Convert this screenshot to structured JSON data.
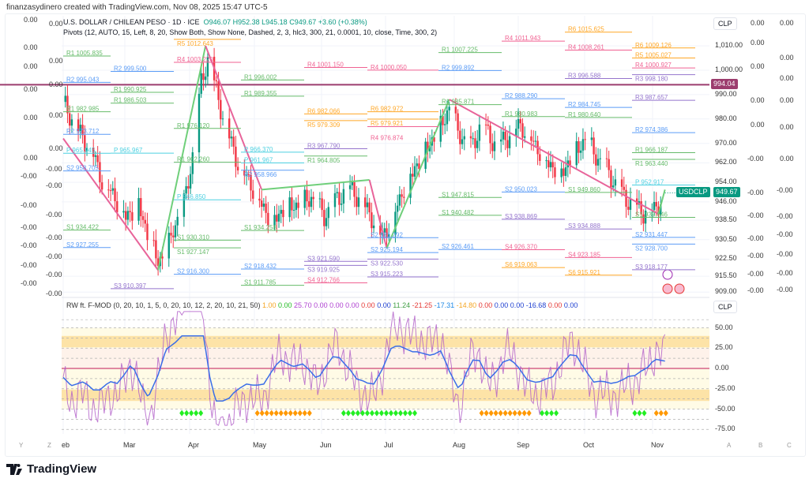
{
  "credit": "finanzasydinero created with TradingView.com, Nov 08, 2025 15:47 UTC-5",
  "symbol": {
    "name": "U.S. DOLLAR / CHILEAN PESO · 1D · ICE",
    "open": "O946.07",
    "high": "H952.38",
    "low": "L945.18",
    "close": "C949.67",
    "change": "+3.60 (+0.38%)",
    "ticker": "USDCLP",
    "last_price": "949.67",
    "ref_line_price": "994.04"
  },
  "pivots_legend": "Pivots (12, AUTO, 15, Left, 8, 20, Show Both, Show None, Dashed, 2, 3, hlc3, 300, 21, 0.0001, 10, close, Time, 300, 2)",
  "indicator": {
    "name": "RW ft. F-MOD (0, 20, 10, 1, 5, 0, 20, 10, 12, 2, 20, 10, 21, 50)",
    "values": [
      {
        "v": "1.00",
        "c": "#f5a623"
      },
      {
        "v": "0.00",
        "c": "#22bb22"
      },
      {
        "v": "25.70",
        "c": "#b043d1"
      },
      {
        "v": "0.00",
        "c": "#b043d1"
      },
      {
        "v": "0.00",
        "c": "#b043d1"
      },
      {
        "v": "0.00",
        "c": "#b043d1"
      },
      {
        "v": "0.00",
        "c": "#e53935"
      },
      {
        "v": "0.00",
        "c": "#1e3fd0"
      },
      {
        "v": "11.24",
        "c": "#43a047"
      },
      {
        "v": "-21.25",
        "c": "#e53935"
      },
      {
        "v": "-17.31",
        "c": "#1e88e5"
      },
      {
        "v": "-14.80",
        "c": "#f5a623"
      },
      {
        "v": "0.00",
        "c": "#e53935"
      },
      {
        "v": "0.00",
        "c": "#1e3fd0"
      },
      {
        "v": "0.00",
        "c": "#1e3fd0"
      },
      {
        "v": "-16.68",
        "c": "#1e3fd0"
      },
      {
        "v": "0.00",
        "c": "#e53935"
      },
      {
        "v": "0.00",
        "c": "#1e3fd0"
      }
    ],
    "currency": "CLP",
    "axis_ticks": [
      "50.00",
      "25.00",
      "0.00",
      "-25.00",
      "-50.00",
      "-75.00"
    ]
  },
  "currency": "CLP",
  "price_axis": [
    "1,010.00",
    "1,000.00",
    "990.00",
    "980.00",
    "970.00",
    "962.00",
    "954.00",
    "946.00",
    "938.50",
    "930.50",
    "922.50",
    "915.50",
    "909.00"
  ],
  "time_axis": [
    "eb",
    "Mar",
    "Apr",
    "May",
    "Jun",
    "Jul",
    "Aug",
    "Sep",
    "Oct",
    "Nov"
  ],
  "scale_buttons": {
    "left": [
      "Y",
      "Z"
    ],
    "right": [
      "A",
      "B",
      "C"
    ]
  },
  "side_scales": {
    "left1": [
      "0.00",
      "0.00",
      "0.00",
      "0.00",
      "0.00",
      "0.00",
      "-0.00",
      "-0.00",
      "-0.00",
      "-0.00",
      "-0.00",
      "-0.00"
    ],
    "left2": [
      "0.00",
      "0.00",
      "0.00",
      "0.00",
      "0.00",
      "-0.00",
      "-0.00",
      "-0.00",
      "-0.00",
      "-0.00",
      "-0.00",
      "-0.00"
    ],
    "right1": [
      "0.00",
      "0.00",
      "0.00",
      "0.00",
      "0.00",
      "-0.00",
      "-0.00",
      "-0.00",
      "-0.00",
      "-0.00",
      "-0.00",
      "-0.00"
    ],
    "right2": [
      "0.00",
      "0.00",
      "0.00",
      "0.00",
      "0.00",
      "0.00",
      "-0.00",
      "-0.00",
      "-0.00",
      "-0.00",
      "-0.00",
      "-0.00"
    ]
  },
  "brand": "TradingView",
  "colors": {
    "up": "#089981",
    "down": "#f23645",
    "zigzag_down": "#e8649a",
    "zigzag_up": "#6fcf7a",
    "ref_line": "#9c3d6e"
  },
  "chart_data": {
    "type": "candlestick",
    "title": "U.S. DOLLAR / CHILEAN PESO 1D",
    "x_unit": "days since Feb 1, 2025",
    "ylim": [
      909,
      1012
    ],
    "closes": [
      [
        0,
        987
      ],
      [
        7,
        975
      ],
      [
        13,
        968
      ],
      [
        18,
        955
      ],
      [
        24,
        948
      ],
      [
        29,
        940
      ],
      [
        35,
        945
      ],
      [
        40,
        930
      ],
      [
        44,
        922
      ],
      [
        48,
        925
      ],
      [
        51,
        935
      ],
      [
        56,
        945
      ],
      [
        60,
        965
      ],
      [
        64,
        995
      ],
      [
        67,
        1005
      ],
      [
        70,
        995
      ],
      [
        75,
        978
      ],
      [
        81,
        962
      ],
      [
        86,
        955
      ],
      [
        92,
        945
      ],
      [
        97,
        938
      ],
      [
        103,
        944
      ],
      [
        110,
        945
      ],
      [
        115,
        948
      ],
      [
        121,
        940
      ],
      [
        126,
        946
      ],
      [
        132,
        952
      ],
      [
        137,
        948
      ],
      [
        143,
        940
      ],
      [
        148,
        932
      ],
      [
        152,
        938
      ],
      [
        158,
        952
      ],
      [
        163,
        960
      ],
      [
        168,
        968
      ],
      [
        174,
        975
      ],
      [
        179,
        985
      ],
      [
        183,
        975
      ],
      [
        189,
        968
      ],
      [
        194,
        978
      ],
      [
        200,
        970
      ],
      [
        205,
        972
      ],
      [
        211,
        978
      ],
      [
        215,
        975
      ],
      [
        220,
        968
      ],
      [
        225,
        962
      ],
      [
        231,
        958
      ],
      [
        236,
        965
      ],
      [
        242,
        972
      ],
      [
        247,
        965
      ],
      [
        253,
        958
      ],
      [
        258,
        950
      ],
      [
        264,
        945
      ],
      [
        269,
        942
      ],
      [
        275,
        944
      ],
      [
        279,
        949.67
      ]
    ],
    "zigzag": [
      [
        0,
        972
      ],
      [
        44,
        918
      ],
      [
        66,
        1010
      ],
      [
        92,
        951
      ],
      [
        142,
        955
      ],
      [
        150,
        927
      ],
      [
        179,
        988
      ],
      [
        276,
        941
      ],
      [
        279,
        951
      ]
    ],
    "pivots": [
      {
        "p": "Feb",
        "l": "R1",
        "v": "1005.835"
      },
      {
        "p": "Feb",
        "l": "R2",
        "v": "995.043"
      },
      {
        "p": "Feb",
        "l": "R1",
        "v": "982.985"
      },
      {
        "p": "Feb",
        "l": "R2",
        "v": "973.712"
      },
      {
        "p": "Feb",
        "l": "P",
        "v": "965.945"
      },
      {
        "p": "Feb",
        "l": "S2",
        "v": "958.705"
      },
      {
        "p": "Feb",
        "l": "S1",
        "v": "934.422"
      },
      {
        "p": "Feb",
        "l": "S2",
        "v": "927.255"
      },
      {
        "p": "Mar",
        "l": "R2",
        "v": "999.500"
      },
      {
        "p": "Mar",
        "l": "R1",
        "v": "990.925"
      },
      {
        "p": "Mar",
        "l": "R1",
        "v": "986.503"
      },
      {
        "p": "Mar",
        "l": "P",
        "v": "965.967"
      },
      {
        "p": "Mar",
        "l": "S3",
        "v": "910.397"
      },
      {
        "p": "Apr",
        "l": "R5",
        "v": "1012.643"
      },
      {
        "p": "Apr",
        "l": "R4",
        "v": "1003.220"
      },
      {
        "p": "Apr",
        "l": "R1",
        "v": "976.120"
      },
      {
        "p": "Apr",
        "l": "R1",
        "v": "962.260"
      },
      {
        "p": "Apr",
        "l": "P",
        "v": "946.850"
      },
      {
        "p": "Apr",
        "l": "S1",
        "v": "930.310"
      },
      {
        "p": "Apr",
        "l": "S1",
        "v": "927.147"
      },
      {
        "p": "Apr",
        "l": "S2",
        "v": "916.300"
      },
      {
        "p": "May",
        "l": "R1",
        "v": "996.002"
      },
      {
        "p": "May",
        "l": "R1",
        "v": "989.355"
      },
      {
        "p": "May",
        "l": "P",
        "v": "966.370"
      },
      {
        "p": "May",
        "l": "P",
        "v": "961.967"
      },
      {
        "p": "May",
        "l": "R2",
        "v": "958.966"
      },
      {
        "p": "May",
        "l": "S1",
        "v": "934.258"
      },
      {
        "p": "May",
        "l": "S2",
        "v": "918.432"
      },
      {
        "p": "May",
        "l": "S1",
        "v": "911.785"
      },
      {
        "p": "Jun",
        "l": "R4",
        "v": "1001.150"
      },
      {
        "p": "Jun",
        "l": "R6",
        "v": "982.066"
      },
      {
        "p": "Jun",
        "l": "R5",
        "v": "979.309"
      },
      {
        "p": "Jun",
        "l": "R3",
        "v": "967.790"
      },
      {
        "p": "Jun",
        "l": "R1",
        "v": "964.805"
      },
      {
        "p": "Jun",
        "l": "S3",
        "v": "921.590"
      },
      {
        "p": "Jun",
        "l": "S3",
        "v": "919.925"
      },
      {
        "p": "Jun",
        "l": "S4",
        "v": "912.766"
      },
      {
        "p": "Jul",
        "l": "R4",
        "v": "1000.050"
      },
      {
        "p": "Jul",
        "l": "R6",
        "v": "982.972"
      },
      {
        "p": "Jul",
        "l": "R5",
        "v": "979.921"
      },
      {
        "p": "Jul",
        "l": "R4",
        "v": "976.874"
      },
      {
        "p": "Jul",
        "l": "S2",
        "v": "931.292"
      },
      {
        "p": "Jul",
        "l": "S2",
        "v": "925.194"
      },
      {
        "p": "Jul",
        "l": "S3",
        "v": "922.530"
      },
      {
        "p": "Jul",
        "l": "S3",
        "v": "915.223"
      },
      {
        "p": "Aug",
        "l": "R1",
        "v": "1007.225"
      },
      {
        "p": "Aug",
        "l": "R2",
        "v": "999.892"
      },
      {
        "p": "Aug",
        "l": "R1",
        "v": "985.871"
      },
      {
        "p": "Aug",
        "l": "S1",
        "v": "947.815"
      },
      {
        "p": "Aug",
        "l": "S1",
        "v": "940.482"
      },
      {
        "p": "Aug",
        "l": "S2",
        "v": "926.461"
      },
      {
        "p": "Sep",
        "l": "R4",
        "v": "1011.943"
      },
      {
        "p": "Sep",
        "l": "R2",
        "v": "988.290"
      },
      {
        "p": "Sep",
        "l": "R1",
        "v": "980.983"
      },
      {
        "p": "Sep",
        "l": "S2",
        "v": "950.023"
      },
      {
        "p": "Sep",
        "l": "S3",
        "v": "938.869"
      },
      {
        "p": "Sep",
        "l": "S4",
        "v": "926.370"
      },
      {
        "p": "Sep",
        "l": "S6",
        "v": "919.063"
      },
      {
        "p": "Oct",
        "l": "R6",
        "v": "1015.625"
      },
      {
        "p": "Oct",
        "l": "R4",
        "v": "1008.261"
      },
      {
        "p": "Oct",
        "l": "R3",
        "v": "996.588"
      },
      {
        "p": "Oct",
        "l": "R2",
        "v": "984.745"
      },
      {
        "p": "Oct",
        "l": "R1",
        "v": "980.640"
      },
      {
        "p": "Oct",
        "l": "S1",
        "v": "949.860"
      },
      {
        "p": "Oct",
        "l": "S3",
        "v": "934.888"
      },
      {
        "p": "Oct",
        "l": "S4",
        "v": "923.185"
      },
      {
        "p": "Oct",
        "l": "S6",
        "v": "915.921"
      },
      {
        "p": "Nov",
        "l": "R6",
        "v": "1009.126"
      },
      {
        "p": "Nov",
        "l": "R5",
        "v": "1005.027"
      },
      {
        "p": "Nov",
        "l": "R4",
        "v": "1000.927"
      },
      {
        "p": "Nov",
        "l": "R3",
        "v": "998.180"
      },
      {
        "p": "Nov",
        "l": "R3",
        "v": "987.657"
      },
      {
        "p": "Nov",
        "l": "R2",
        "v": "974.386"
      },
      {
        "p": "Nov",
        "l": "R1",
        "v": "966.187"
      },
      {
        "p": "Nov",
        "l": "R1",
        "v": "963.440"
      },
      {
        "p": "Nov",
        "l": "P",
        "v": "952.917"
      },
      {
        "p": "Nov",
        "l": "S1",
        "v": "939.646"
      },
      {
        "p": "Nov",
        "l": "S2",
        "v": "931.447"
      },
      {
        "p": "Nov",
        "l": "S2",
        "v": "928.700"
      },
      {
        "p": "Nov",
        "l": "S3",
        "v": "918.177"
      }
    ],
    "signals": [
      {
        "type": "green",
        "from": 55,
        "to": 66
      },
      {
        "type": "orange",
        "from": 90,
        "to": 116
      },
      {
        "type": "green",
        "from": 130,
        "to": 165
      },
      {
        "type": "orange",
        "from": 194,
        "to": 217
      },
      {
        "type": "green",
        "from": 222,
        "to": 229
      },
      {
        "type": "green",
        "from": 265,
        "to": 271
      },
      {
        "type": "orange",
        "from": 275,
        "to": 281
      }
    ]
  }
}
